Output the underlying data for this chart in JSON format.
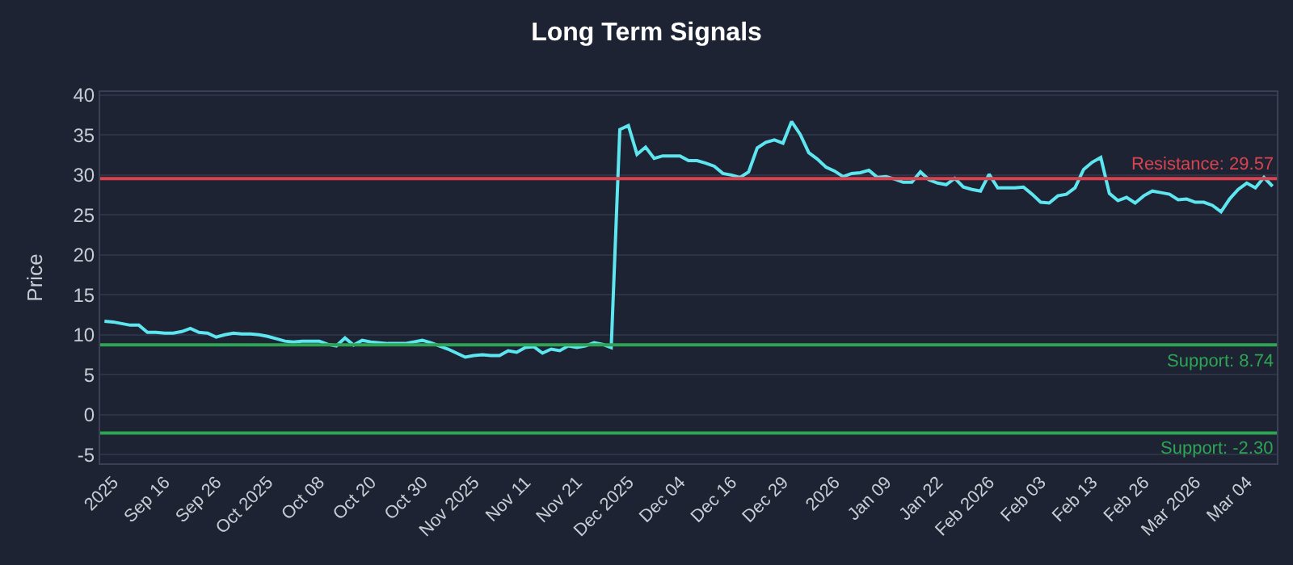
{
  "chart_data": {
    "type": "line",
    "title": "Long Term Signals",
    "ylabel": "Price",
    "categories": [
      null,
      "2025",
      null,
      null,
      null,
      null,
      null,
      "Sep 16",
      null,
      null,
      null,
      null,
      null,
      "Sep 26",
      null,
      null,
      null,
      null,
      null,
      "Oct 2025",
      null,
      null,
      null,
      null,
      null,
      "Oct 08",
      null,
      null,
      null,
      null,
      null,
      "Oct 20",
      null,
      null,
      null,
      null,
      null,
      "Oct 30",
      null,
      null,
      null,
      null,
      null,
      "Nov 2025",
      null,
      null,
      null,
      null,
      null,
      "Nov 11",
      null,
      null,
      null,
      null,
      null,
      "Nov 21",
      null,
      null,
      null,
      null,
      null,
      "Dec 2025",
      null,
      null,
      null,
      null,
      null,
      "Dec 04",
      null,
      null,
      null,
      null,
      null,
      "Dec 16",
      null,
      null,
      null,
      null,
      null,
      "Dec 29",
      null,
      null,
      null,
      null,
      null,
      "2026",
      null,
      null,
      null,
      null,
      null,
      "Jan 09",
      null,
      null,
      null,
      null,
      null,
      "Jan 22",
      null,
      null,
      null,
      null,
      null,
      "Feb 2026",
      null,
      null,
      null,
      null,
      null,
      "Feb 03",
      null,
      null,
      null,
      null,
      null,
      "Feb 13",
      null,
      null,
      null,
      null,
      null,
      "Feb 26",
      null,
      null,
      null,
      null,
      null,
      "Mar 2026",
      null,
      null,
      null,
      null,
      null,
      "Mar 04",
      null,
      null,
      null
    ],
    "series": [
      {
        "color": "#5ee6f0",
        "values": [
          11.7,
          11.6,
          11.4,
          11.2,
          11.2,
          10.3,
          10.3,
          10.2,
          10.2,
          10.4,
          10.8,
          10.3,
          10.2,
          9.7,
          10.0,
          10.2,
          10.1,
          10.1,
          10.0,
          9.8,
          9.5,
          9.2,
          9.1,
          9.2,
          9.2,
          9.2,
          8.8,
          8.6,
          9.6,
          8.7,
          9.3,
          9.1,
          9.0,
          8.9,
          8.9,
          8.9,
          9.1,
          9.3,
          9.0,
          8.6,
          8.2,
          7.7,
          7.2,
          7.4,
          7.5,
          7.4,
          7.4,
          8.0,
          7.8,
          8.4,
          8.5,
          7.7,
          8.2,
          8.0,
          8.6,
          8.4,
          8.6,
          9.0,
          8.8,
          8.4,
          35.7,
          36.2,
          32.6,
          33.5,
          32.1,
          32.4,
          32.4,
          32.4,
          31.8,
          31.8,
          31.5,
          31.1,
          30.2,
          30.0,
          29.7,
          30.4,
          33.4,
          34.1,
          34.4,
          34.0,
          36.7,
          35.1,
          32.8,
          32.0,
          31.0,
          30.5,
          29.8,
          30.2,
          30.3,
          30.6,
          29.7,
          29.8,
          29.5,
          29.1,
          29.1,
          30.4,
          29.4,
          29.0,
          28.8,
          29.6,
          28.5,
          28.2,
          28.0,
          30.1,
          28.4,
          28.4,
          28.4,
          28.5,
          27.6,
          26.6,
          26.5,
          27.4,
          27.6,
          28.4,
          30.7,
          31.6,
          32.2,
          27.7,
          26.8,
          27.2,
          26.5,
          27.4,
          28.0,
          27.8,
          27.6,
          26.9,
          27.0,
          26.6,
          26.6,
          26.2,
          25.4,
          27.0,
          28.2,
          29.0,
          28.4,
          29.7,
          28.6
        ]
      }
    ],
    "ylim": [
      -6.1,
      40.4
    ],
    "yticks": [
      -5,
      0,
      5,
      10,
      15,
      20,
      25,
      30,
      35,
      40
    ],
    "grid": "y",
    "marker": "none",
    "line_style": "solid",
    "ref_lines": [
      {
        "axis": "y",
        "value": 29.57,
        "label": "Resistance: 29.57",
        "color": "#d9434f"
      },
      {
        "axis": "y",
        "value": 8.74,
        "label": "Support: 8.74",
        "color": "#2ea455"
      },
      {
        "axis": "y",
        "value": -2.3,
        "label": "Support: -2.30",
        "color": "#2ea455"
      }
    ]
  }
}
